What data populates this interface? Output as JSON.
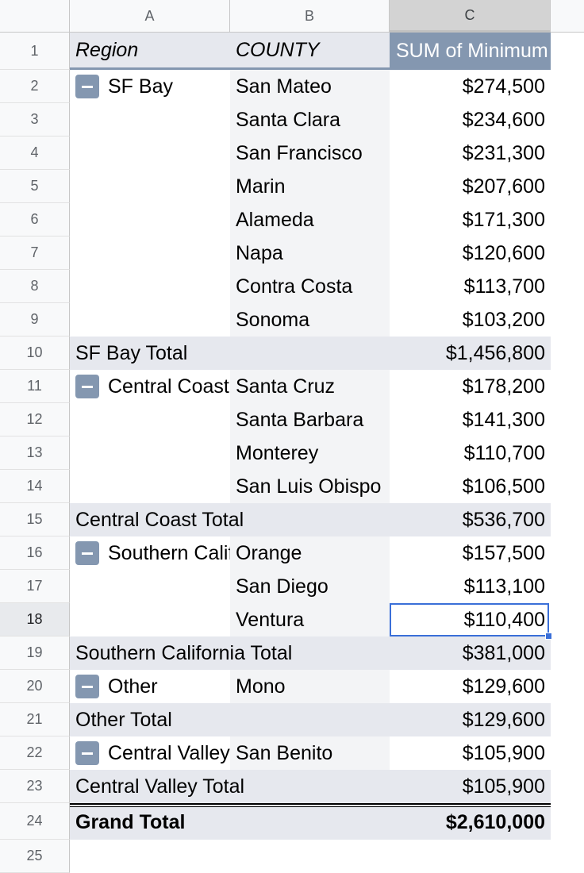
{
  "columns": [
    "A",
    "B",
    "C"
  ],
  "row_numbers": [
    "1",
    "2",
    "3",
    "4",
    "5",
    "6",
    "7",
    "8",
    "9",
    "10",
    "11",
    "12",
    "13",
    "14",
    "15",
    "16",
    "17",
    "18",
    "19",
    "20",
    "21",
    "22",
    "23",
    "24",
    "25"
  ],
  "pivot_header": {
    "region": "Region",
    "county": "COUNTY",
    "sum": "SUM of Minimum"
  },
  "rows": [
    {
      "region": "SF Bay",
      "county": "San Mateo",
      "value": "$274,500"
    },
    {
      "region": "",
      "county": "Santa Clara",
      "value": "$234,600"
    },
    {
      "region": "",
      "county": "San Francisco",
      "value": "$231,300"
    },
    {
      "region": "",
      "county": "Marin",
      "value": "$207,600"
    },
    {
      "region": "",
      "county": "Alameda",
      "value": "$171,300"
    },
    {
      "region": "",
      "county": "Napa",
      "value": "$120,600"
    },
    {
      "region": "",
      "county": "Contra Costa",
      "value": "$113,700"
    },
    {
      "region": "",
      "county": "Sonoma",
      "value": "$103,200"
    },
    {
      "total": "SF Bay Total",
      "value": "$1,456,800"
    },
    {
      "region": "Central Coast",
      "county": "Santa Cruz",
      "value": "$178,200"
    },
    {
      "region": "",
      "county": "Santa Barbara",
      "value": "$141,300"
    },
    {
      "region": "",
      "county": "Monterey",
      "value": "$110,700"
    },
    {
      "region": "",
      "county": "San Luis Obispo",
      "value": "$106,500"
    },
    {
      "total": "Central Coast Total",
      "value": "$536,700"
    },
    {
      "region": "Southern California",
      "county": "Orange",
      "value": "$157,500"
    },
    {
      "region": "",
      "county": "San Diego",
      "value": "$113,100"
    },
    {
      "region": "",
      "county": "Ventura",
      "value": "$110,400"
    },
    {
      "total": "Southern California Total",
      "value": "$381,000"
    },
    {
      "region": "Other",
      "county": "Mono",
      "value": "$129,600"
    },
    {
      "total": "Other Total",
      "value": "$129,600"
    },
    {
      "region": "Central Valley",
      "county": "San Benito",
      "value": "$105,900"
    },
    {
      "total": "Central Valley Total",
      "value": "$105,900"
    }
  ],
  "grand_total": {
    "label": "Grand Total",
    "value": "$2,610,000"
  },
  "selected_cell": "C18",
  "colors": {
    "header_fill": "#8497b0",
    "total_fill": "#e6e8ee",
    "selection": "#3a6fd8"
  }
}
